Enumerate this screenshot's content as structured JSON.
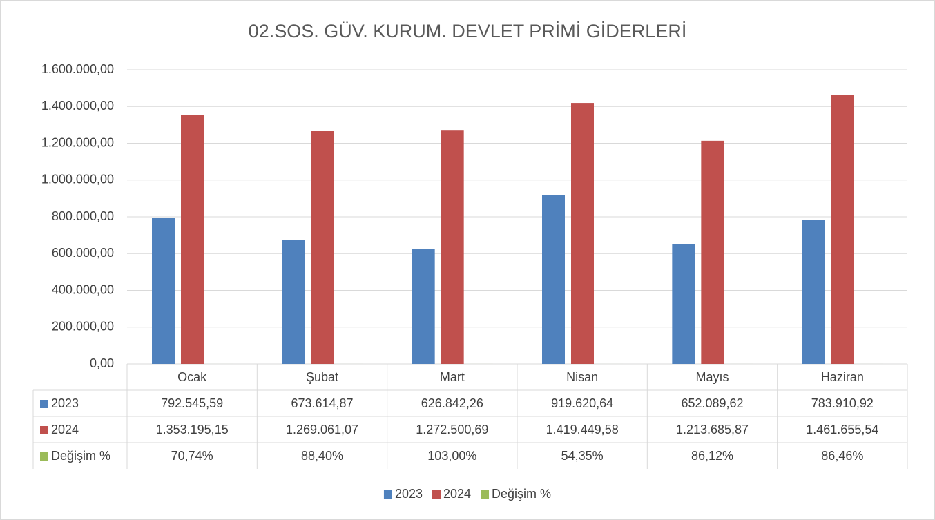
{
  "chart_data": {
    "type": "bar",
    "title": "02.SOS. GÜV. KURUM. DEVLET PRİMİ GİDERLERİ",
    "categories": [
      "Ocak",
      "Şubat",
      "Mart",
      "Nisan",
      "Mayıs",
      "Haziran"
    ],
    "series": [
      {
        "name": "2023",
        "color": "#4f81bd",
        "values": [
          792545.59,
          673614.87,
          626842.26,
          919620.64,
          652089.62,
          783910.92
        ],
        "value_labels": [
          "792.545,59",
          "673.614,87",
          "626.842,26",
          "919.620,64",
          "652.089,62",
          "783.910,92"
        ]
      },
      {
        "name": "2024",
        "color": "#c0504d",
        "values": [
          1353195.15,
          1269061.07,
          1272500.69,
          1419449.58,
          1213685.87,
          1461655.54
        ],
        "value_labels": [
          "1.353.195,15",
          "1.269.061,07",
          "1.272.500,69",
          "1.419.449,58",
          "1.213.685,87",
          "1.461.655,54"
        ]
      },
      {
        "name": "Değişim %",
        "color": "#9bbb59",
        "values": [
          70.74,
          88.4,
          103.0,
          54.35,
          86.12,
          86.46
        ],
        "value_labels": [
          "70,74%",
          "88,40%",
          "103,00%",
          "54,35%",
          "86,12%",
          "86,46%"
        ]
      }
    ],
    "ylim": [
      0,
      1600000
    ],
    "yticks": [
      {
        "value": 0,
        "label": "0,00"
      },
      {
        "value": 200000,
        "label": "200.000,00"
      },
      {
        "value": 400000,
        "label": "400.000,00"
      },
      {
        "value": 600000,
        "label": "600.000,00"
      },
      {
        "value": 800000,
        "label": "800.000,00"
      },
      {
        "value": 1000000,
        "label": "1.000.000,00"
      },
      {
        "value": 1200000,
        "label": "1.200.000,00"
      },
      {
        "value": 1400000,
        "label": "1.400.000,00"
      },
      {
        "value": 1600000,
        "label": "1.600.000,00"
      }
    ],
    "grid": true,
    "legend": "bottom"
  }
}
